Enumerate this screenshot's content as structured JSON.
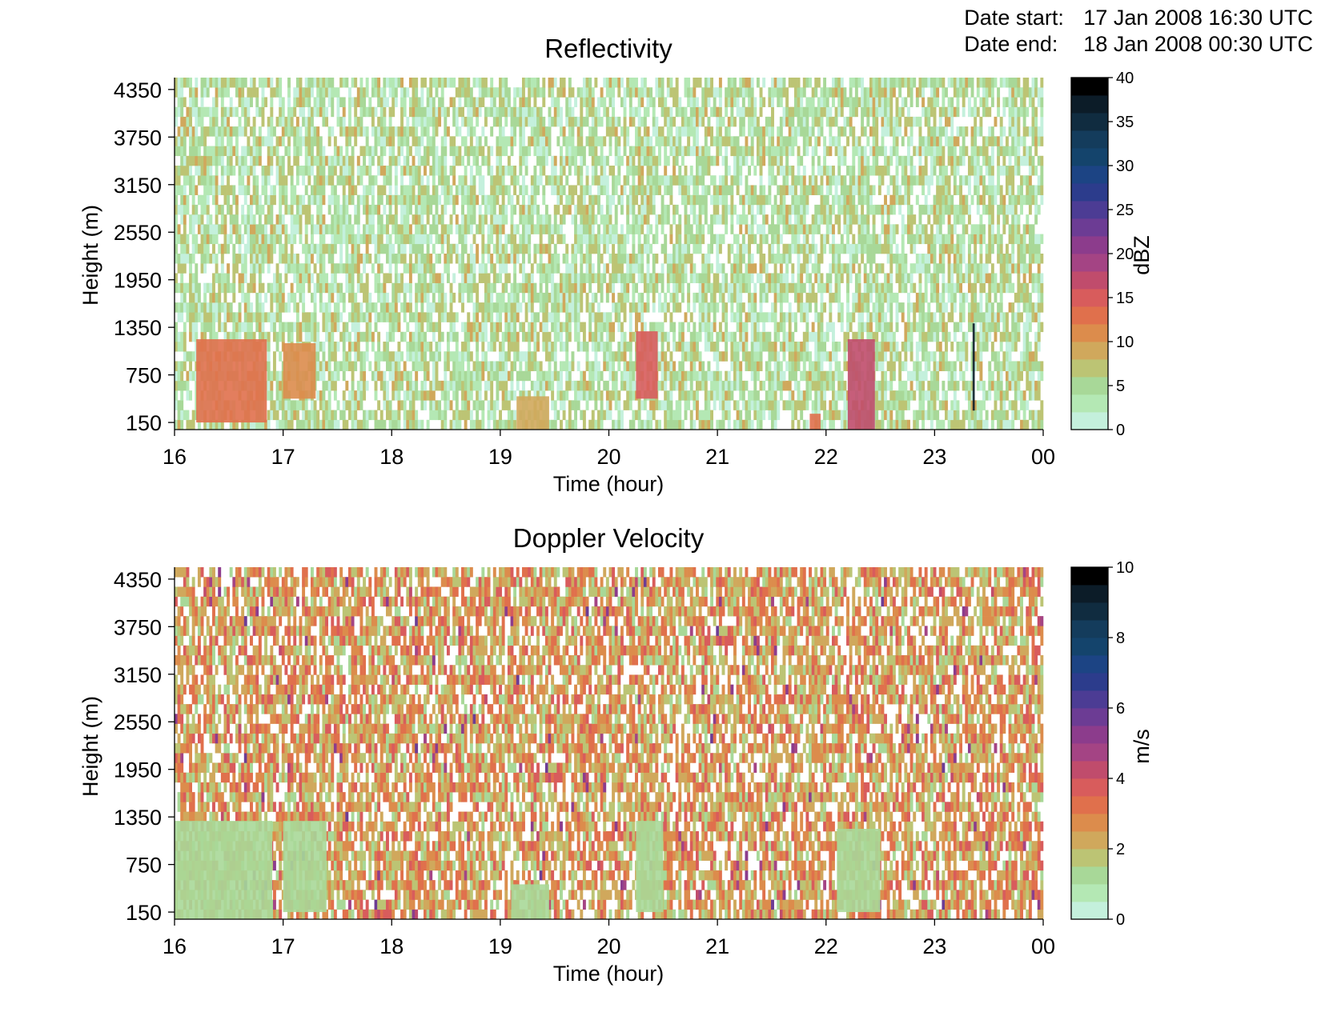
{
  "header": {
    "date_start_label": "Date start:",
    "date_start_value": "17 Jan 2008 16:30 UTC",
    "date_end_label": "Date end:",
    "date_end_value": "18 Jan 2008 00:30 UTC"
  },
  "colors": {
    "background": "#ffffff",
    "axis": "#000000",
    "colormap": [
      "#ffffff",
      "#c4f0dc",
      "#b4e8b4",
      "#a8d898",
      "#bcc474",
      "#d0a85c",
      "#dc8c4c",
      "#e0704c",
      "#d85c5c",
      "#c04c6c",
      "#a44484",
      "#8c3c8c",
      "#6c3c94",
      "#4c3c94",
      "#2c3c8c",
      "#1c4484",
      "#14446c",
      "#143c5c",
      "#102c40",
      "#0c1c28",
      "#000000"
    ]
  },
  "chart_data": [
    {
      "type": "heatmap",
      "title": "Reflectivity",
      "xlabel": "Time (hour)",
      "ylabel": "Height (m)",
      "x_ticks": [
        "16",
        "17",
        "18",
        "19",
        "20",
        "21",
        "22",
        "23",
        "00"
      ],
      "y_ticks": [
        "150",
        "750",
        "1350",
        "1950",
        "2550",
        "3150",
        "3750",
        "4350"
      ],
      "xlim": [
        16,
        24
      ],
      "ylim": [
        60,
        4500
      ],
      "colorbar": {
        "label": "dBZ",
        "ticks": [
          "0",
          "5",
          "10",
          "15",
          "20",
          "25",
          "30",
          "35",
          "40"
        ],
        "range": [
          0,
          40
        ],
        "levels": 20
      },
      "field": {
        "background_range": [
          1.5,
          9.5
        ],
        "cells": [
          {
            "t0": 16.2,
            "t1": 16.85,
            "h0": 150,
            "h1": 1200,
            "value": 14
          },
          {
            "t0": 17.0,
            "t1": 17.3,
            "h0": 450,
            "h1": 1150,
            "value": 12
          },
          {
            "t0": 19.15,
            "t1": 19.45,
            "h0": 60,
            "h1": 480,
            "value": 10
          },
          {
            "t0": 20.25,
            "t1": 20.45,
            "h0": 450,
            "h1": 1300,
            "value": 15
          },
          {
            "t0": 21.85,
            "t1": 21.95,
            "h0": 60,
            "h1": 260,
            "value": 13
          },
          {
            "t0": 22.2,
            "t1": 22.45,
            "h0": 60,
            "h1": 1200,
            "value": 17
          },
          {
            "t0": 23.35,
            "t1": 23.37,
            "h0": 300,
            "h1": 1400,
            "value": 38
          }
        ]
      }
    },
    {
      "type": "heatmap",
      "title": "Doppler Velocity",
      "xlabel": "Time (hour)",
      "ylabel": "Height (m)",
      "x_ticks": [
        "16",
        "17",
        "18",
        "19",
        "20",
        "21",
        "22",
        "23",
        "00"
      ],
      "y_ticks": [
        "150",
        "750",
        "1350",
        "1950",
        "2550",
        "3150",
        "3750",
        "4350"
      ],
      "xlim": [
        16,
        24
      ],
      "ylim": [
        60,
        4500
      ],
      "colorbar": {
        "label": "m/s",
        "ticks": [
          "0",
          "2",
          "4",
          "6",
          "8",
          "10"
        ],
        "range": [
          0,
          10
        ],
        "levels": 20
      },
      "field": {
        "background_range": [
          1.5,
          4.0
        ],
        "cells": [
          {
            "t0": 16.0,
            "t1": 16.9,
            "h0": 60,
            "h1": 1300,
            "value": 1.5
          },
          {
            "t0": 17.0,
            "t1": 17.4,
            "h0": 150,
            "h1": 1300,
            "value": 1.5
          },
          {
            "t0": 19.1,
            "t1": 19.45,
            "h0": 60,
            "h1": 500,
            "value": 1.5
          },
          {
            "t0": 20.25,
            "t1": 20.5,
            "h0": 150,
            "h1": 1300,
            "value": 1.5
          },
          {
            "t0": 22.1,
            "t1": 22.5,
            "h0": 150,
            "h1": 1200,
            "value": 1.5
          }
        ]
      }
    }
  ]
}
